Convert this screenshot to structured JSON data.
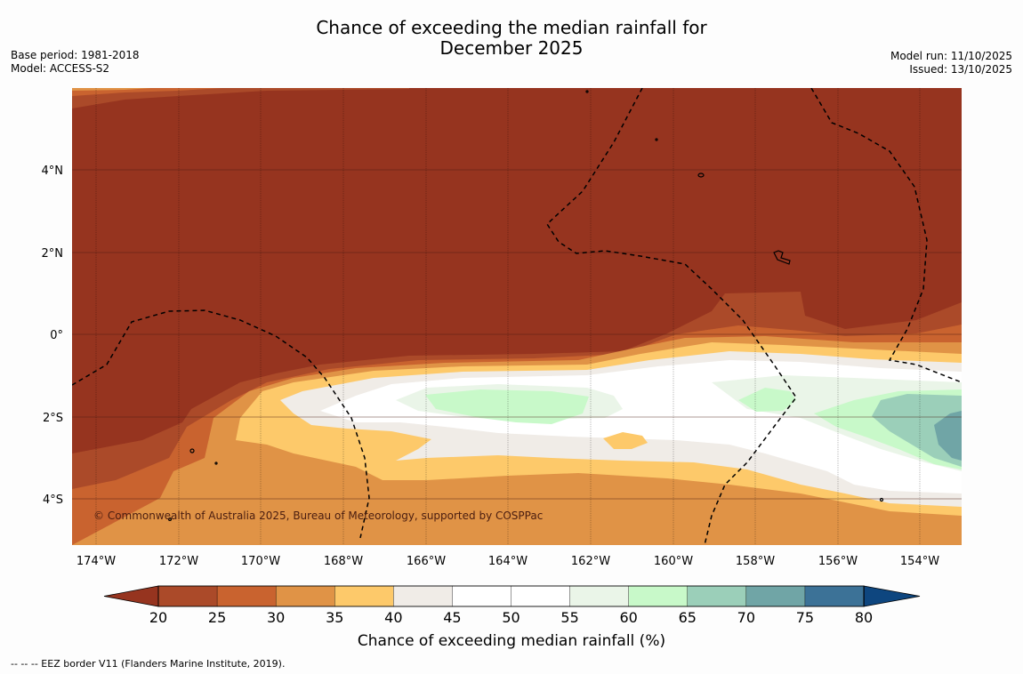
{
  "title_line1": "Chance of exceeding the median rainfall for",
  "title_line2": "December 2025",
  "meta_left": {
    "base_period": "Base period: 1981-2018",
    "model": "Model: ACCESS-S2"
  },
  "meta_right": {
    "model_run": "Model run: 11/10/2025",
    "issued": "Issued: 13/10/2025"
  },
  "copyright": "© Commonwealth of Australia 2025, Bureau of Meteorology, supported by COSPPac",
  "lon_labels": [
    "174°W",
    "172°W",
    "170°W",
    "168°W",
    "166°W",
    "164°W",
    "162°W",
    "160°W",
    "158°W",
    "156°W",
    "154°W"
  ],
  "lat_labels": [
    "4°N",
    "2°N",
    "0°",
    "2°S",
    "4°S"
  ],
  "colorbar": {
    "title": "Chance of exceeding median rainfall (%)",
    "ticks": [
      "20",
      "25",
      "30",
      "35",
      "40",
      "45",
      "50",
      "55",
      "60",
      "65",
      "70",
      "75",
      "80"
    ],
    "colors": [
      "#96341f",
      "#ab4a29",
      "#c9632f",
      "#e09346",
      "#fdc96a",
      "#f0ece7",
      "#ffffff",
      "#ffffff",
      "#eaf5e8",
      "#c8f9c9",
      "#9bcfb9",
      "#70a5a6",
      "#3c7297",
      "#0e467f"
    ]
  },
  "footnote": "--  --  -- EEZ border V11 (Flanders Marine Institute, 2019)."
}
